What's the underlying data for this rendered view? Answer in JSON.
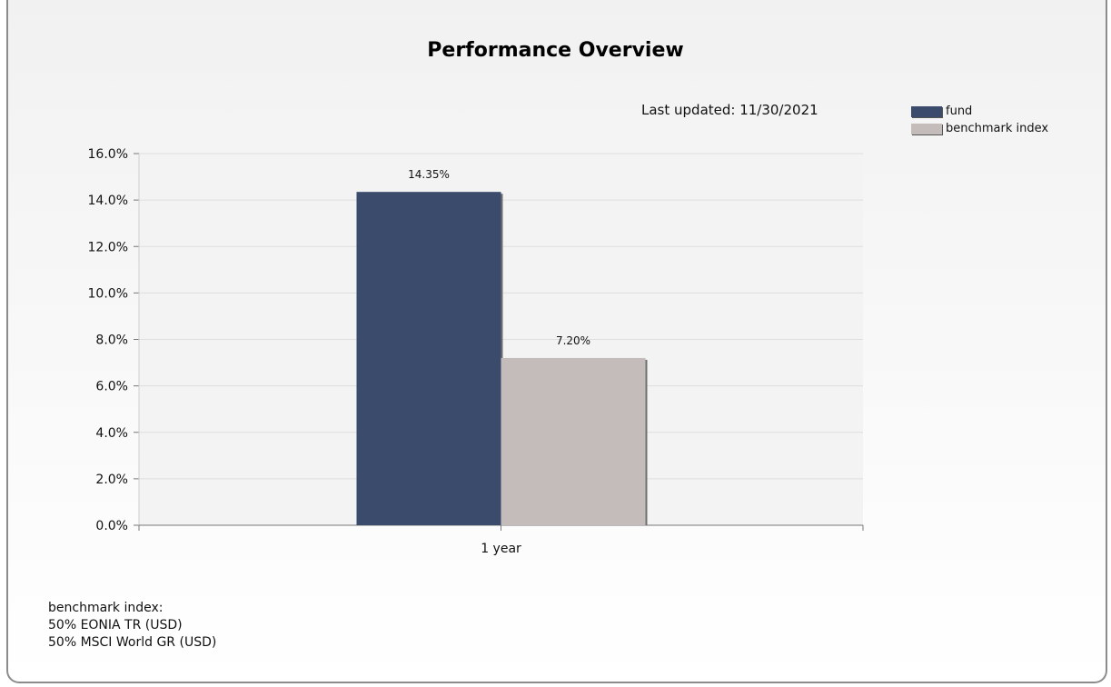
{
  "title": "Performance Overview",
  "last_updated": "Last updated: 11/30/2021",
  "footnote": {
    "heading": "benchmark index:",
    "lines": [
      "50% EONIA TR (USD)",
      "50% MSCI World GR (USD)"
    ]
  },
  "chart_data": {
    "type": "bar",
    "categories": [
      "1 year"
    ],
    "series": [
      {
        "name": "fund",
        "values": [
          14.35
        ],
        "labels": [
          "14.35%"
        ],
        "color": "#3a4b6c"
      },
      {
        "name": "benchmark index",
        "values": [
          7.2
        ],
        "labels": [
          "7.20%"
        ],
        "color": "#c4bcbb"
      }
    ],
    "y_ticks": [
      "0.0%",
      "2.0%",
      "4.0%",
      "6.0%",
      "8.0%",
      "10.0%",
      "12.0%",
      "14.0%",
      "16.0%"
    ],
    "ylim": [
      0,
      16
    ],
    "grid": true,
    "legend_position": "top-right"
  }
}
